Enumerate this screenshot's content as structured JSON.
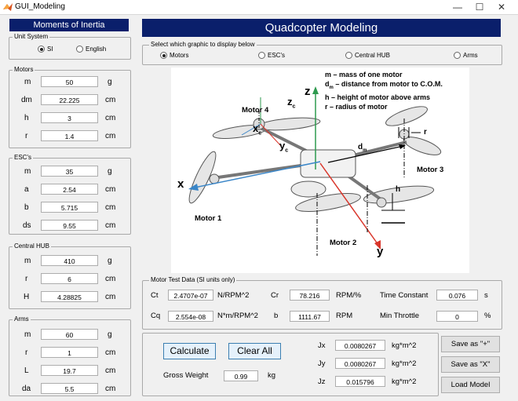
{
  "window": {
    "title": "GUI_Modeling",
    "min": "—",
    "max": "☐",
    "close": "✕"
  },
  "left": {
    "header": "Moments of Inertia",
    "unit_system": {
      "title": "Unit System",
      "si": "SI",
      "english": "English",
      "selected": "SI"
    },
    "motors": {
      "title": "Motors",
      "rows": [
        {
          "label": "m",
          "value": "50",
          "unit": "g"
        },
        {
          "label": "dm",
          "value": "22.225",
          "unit": "cm"
        },
        {
          "label": "h",
          "value": "3",
          "unit": "cm"
        },
        {
          "label": "r",
          "value": "1.4",
          "unit": "cm"
        }
      ]
    },
    "escs": {
      "title": "ESC's",
      "rows": [
        {
          "label": "m",
          "value": "35",
          "unit": "g"
        },
        {
          "label": "a",
          "value": "2.54",
          "unit": "cm"
        },
        {
          "label": "b",
          "value": "5.715",
          "unit": "cm"
        },
        {
          "label": "ds",
          "value": "9.55",
          "unit": "cm"
        }
      ]
    },
    "hub": {
      "title": "Central HUB",
      "rows": [
        {
          "label": "m",
          "value": "410",
          "unit": "g"
        },
        {
          "label": "r",
          "value": "6",
          "unit": "cm"
        },
        {
          "label": "H",
          "value": "4.28825",
          "unit": "cm"
        }
      ]
    },
    "arms": {
      "title": "Arms",
      "rows": [
        {
          "label": "m",
          "value": "60",
          "unit": "g"
        },
        {
          "label": "r",
          "value": "1",
          "unit": "cm"
        },
        {
          "label": "L",
          "value": "19.7",
          "unit": "cm"
        },
        {
          "label": "da",
          "value": "5.5",
          "unit": "cm"
        }
      ]
    }
  },
  "right": {
    "header": "Quadcopter Modeling",
    "graphic_select": {
      "title": "Select which graphic to display below",
      "options": [
        "Motors",
        "ESC's",
        "Central HUB",
        "Arms"
      ],
      "selected": "Motors"
    },
    "diagram": {
      "legend": [
        "m – mass of one motor",
        "d",
        "m",
        " – distance from motor to C.O.M.",
        "h – height of motor above arms",
        "r – radius of motor"
      ],
      "labels": {
        "motor4": "Motor 4",
        "motor1": "Motor 1",
        "motor2": "Motor 2",
        "motor3": "Motor 3",
        "x": "x",
        "y": "y",
        "z": "z",
        "xc": "x",
        "yc": "y",
        "zc": "z",
        "c": "c",
        "dm": "d",
        "m": "m",
        "h": "h",
        "r": "r"
      }
    },
    "motor_test": {
      "title": "Motor Test Data (SI units only)",
      "ct": {
        "label": "Ct",
        "value": "2.4707e-07",
        "unit": "N/RPM^2"
      },
      "cr": {
        "label": "Cr",
        "value": "78.216",
        "unit": "RPM/%"
      },
      "time_constant": {
        "label": "Time Constant",
        "value": "0.076",
        "unit": "s"
      },
      "cq": {
        "label": "Cq",
        "value": "2.554e-08",
        "unit": "N*m/RPM^2"
      },
      "b": {
        "label": "b",
        "value": "1111.67",
        "unit": "RPM"
      },
      "min_throttle": {
        "label": "Min Throttle",
        "value": "0",
        "unit": "%"
      }
    },
    "results": {
      "calculate": "Calculate",
      "clear_all": "Clear All",
      "gross_weight": {
        "label": "Gross Weight",
        "value": "0.99",
        "unit": "kg"
      },
      "jx": {
        "label": "Jx",
        "value": "0.0080267",
        "unit": "kg*m^2"
      },
      "jy": {
        "label": "Jy",
        "value": "0.0080267",
        "unit": "kg*m^2"
      },
      "jz": {
        "label": "Jz",
        "value": "0.015796",
        "unit": "kg*m^2"
      }
    },
    "buttons": {
      "save_plus": "Save as \"+\"",
      "save_x": "Save as \"X\"",
      "load_model": "Load Model"
    }
  }
}
